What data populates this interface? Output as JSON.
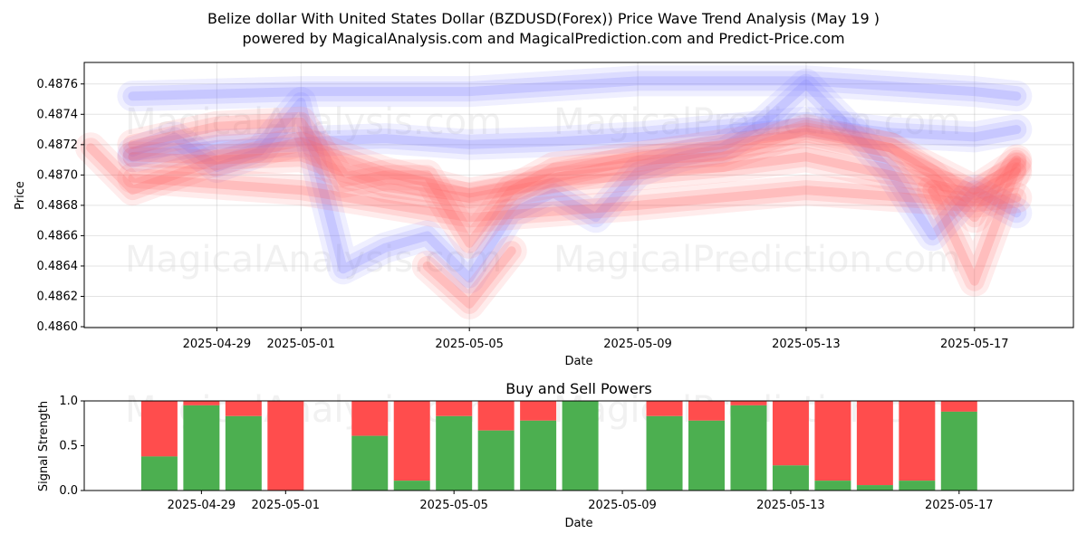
{
  "colors": {
    "buy": "#4caf50",
    "sell": "#ff4d4d",
    "blue_band": "#7f7fff",
    "red_band": "#ff6666",
    "watermark": "#cccccc"
  },
  "chart_data": [
    {
      "type": "line",
      "title": "Belize dollar With United States Dollar (BZDUSD(Forex)) Price Wave Trend Analysis (May 19 )",
      "subtitle": "powered by MagicalAnalysis.com and MagicalPrediction.com and Predict-Price.com",
      "xlabel": "Date",
      "ylabel": "Price",
      "xlim": [
        "2025-04-26",
        "2025-05-19"
      ],
      "ylim": [
        0.486,
        0.4877
      ],
      "x_ticks": [
        "2025-04-29",
        "2025-05-01",
        "2025-05-05",
        "2025-05-09",
        "2025-05-13",
        "2025-05-17"
      ],
      "y_ticks": [
        "0.4860",
        "0.4862",
        "0.4864",
        "0.4866",
        "0.4868",
        "0.4870",
        "0.4872",
        "0.4874",
        "0.4876"
      ],
      "watermarks": [
        "MagicalAnalysis.com",
        "MagicalPrediction.com",
        "MagicalAnalysis.com",
        "MagicalPrediction.com"
      ],
      "series": [
        {
          "name": "blue upper band",
          "color": "#7f7fff",
          "x": [
            "2025-04-27",
            "2025-05-01",
            "2025-05-05",
            "2025-05-09",
            "2025-05-13",
            "2025-05-17",
            "2025-05-18"
          ],
          "values": [
            0.48752,
            0.48755,
            0.48755,
            0.48762,
            0.48762,
            0.48755,
            0.48752
          ]
        },
        {
          "name": "blue wave 1",
          "color": "#7f7fff",
          "x": [
            "2025-04-27",
            "2025-04-28",
            "2025-04-29",
            "2025-04-30",
            "2025-05-01",
            "2025-05-02",
            "2025-05-03",
            "2025-05-04",
            "2025-05-05",
            "2025-05-06",
            "2025-05-07",
            "2025-05-08",
            "2025-05-09",
            "2025-05-10",
            "2025-05-11",
            "2025-05-12",
            "2025-05-13",
            "2025-05-14",
            "2025-05-15",
            "2025-05-16",
            "2025-05-17",
            "2025-05-18"
          ],
          "values": [
            0.48715,
            0.48725,
            0.48705,
            0.48715,
            0.48748,
            0.48638,
            0.48652,
            0.4866,
            0.48632,
            0.48675,
            0.48688,
            0.48672,
            0.48702,
            0.48712,
            0.48718,
            0.48735,
            0.4876,
            0.48732,
            0.48702,
            0.4866,
            0.4869,
            0.48675
          ]
        },
        {
          "name": "blue wave 2",
          "color": "#7f7fff",
          "x": [
            "2025-04-27",
            "2025-04-29",
            "2025-05-01",
            "2025-05-03",
            "2025-05-05",
            "2025-05-07",
            "2025-05-09",
            "2025-05-11",
            "2025-05-13",
            "2025-05-15",
            "2025-05-17",
            "2025-05-18"
          ],
          "values": [
            0.48712,
            0.4872,
            0.48722,
            0.48724,
            0.4872,
            0.48722,
            0.48725,
            0.4873,
            0.48735,
            0.48728,
            0.48725,
            0.4873
          ]
        },
        {
          "name": "red wave 1",
          "color": "#ff6666",
          "x": [
            "2025-04-26",
            "2025-04-27",
            "2025-04-29",
            "2025-05-01",
            "2025-05-03",
            "2025-05-05",
            "2025-05-07",
            "2025-05-09",
            "2025-05-11",
            "2025-05-13",
            "2025-05-15",
            "2025-05-17",
            "2025-05-18"
          ],
          "values": [
            0.48718,
            0.4869,
            0.4871,
            0.48722,
            0.48702,
            0.48688,
            0.48698,
            0.4871,
            0.48712,
            0.4873,
            0.48718,
            0.4869,
            0.48708
          ]
        },
        {
          "name": "red wave 2",
          "color": "#ff6666",
          "x": [
            "2025-04-27",
            "2025-04-29",
            "2025-05-01",
            "2025-05-02",
            "2025-05-03",
            "2025-05-04",
            "2025-05-05",
            "2025-05-06",
            "2025-05-07",
            "2025-05-09",
            "2025-05-11",
            "2025-05-13",
            "2025-05-15",
            "2025-05-16",
            "2025-05-17",
            "2025-05-18"
          ],
          "values": [
            0.4872,
            0.48732,
            0.48735,
            0.48695,
            0.487,
            0.487,
            0.48655,
            0.4869,
            0.48705,
            0.48712,
            0.4872,
            0.48728,
            0.48718,
            0.487,
            0.48672,
            0.4871
          ]
        },
        {
          "name": "red wave 3",
          "color": "#ff6666",
          "x": [
            "2025-04-27",
            "2025-04-29",
            "2025-05-01",
            "2025-05-03",
            "2025-05-05",
            "2025-05-07",
            "2025-05-09",
            "2025-05-11",
            "2025-05-13",
            "2025-05-15",
            "2025-05-17",
            "2025-05-18"
          ],
          "values": [
            0.48712,
            0.4871,
            0.48712,
            0.48692,
            0.48685,
            0.48695,
            0.487,
            0.48705,
            0.48712,
            0.487,
            0.48688,
            0.48702
          ]
        },
        {
          "name": "red lower band",
          "color": "#ff6666",
          "x": [
            "2025-04-27",
            "2025-05-01",
            "2025-05-05",
            "2025-05-09",
            "2025-05-13",
            "2025-05-17",
            "2025-05-18"
          ],
          "values": [
            0.48698,
            0.4869,
            0.48672,
            0.4868,
            0.4869,
            0.48682,
            0.48685
          ]
        },
        {
          "name": "red dip",
          "color": "#ff6666",
          "x": [
            "2025-05-04",
            "2025-05-05",
            "2025-05-06"
          ],
          "values": [
            0.4864,
            0.48615,
            0.4865
          ]
        },
        {
          "name": "red tail",
          "color": "#ff6666",
          "x": [
            "2025-05-16",
            "2025-05-17",
            "2025-05-18"
          ],
          "values": [
            0.4869,
            0.4863,
            0.48705
          ]
        }
      ]
    },
    {
      "type": "bar",
      "title": "Buy and Sell Powers",
      "xlabel": "Date",
      "ylabel": "Signal Strength",
      "ylim": [
        0.0,
        1.0
      ],
      "x_ticks": [
        "2025-04-29",
        "2025-05-01",
        "2025-05-05",
        "2025-05-09",
        "2025-05-13",
        "2025-05-17"
      ],
      "y_ticks": [
        "0.0",
        "0.5",
        "1.0"
      ],
      "categories": [
        "2025-04-28",
        "2025-04-29",
        "2025-04-30",
        "2025-05-01",
        "2025-05-03",
        "2025-05-04",
        "2025-05-05",
        "2025-05-06",
        "2025-05-07",
        "2025-05-08",
        "2025-05-10",
        "2025-05-11",
        "2025-05-12",
        "2025-05-13",
        "2025-05-14",
        "2025-05-15",
        "2025-05-16",
        "2025-05-17"
      ],
      "series": [
        {
          "name": "Buy",
          "color": "#4caf50",
          "values": [
            0.38,
            0.95,
            0.83,
            0.0,
            0.61,
            0.11,
            0.83,
            0.67,
            0.78,
            1.0,
            0.83,
            0.78,
            0.95,
            0.28,
            0.11,
            0.06,
            0.11,
            0.88
          ]
        },
        {
          "name": "Sell",
          "color": "#ff4d4d",
          "values": [
            0.62,
            0.05,
            0.17,
            1.0,
            0.39,
            0.89,
            0.17,
            0.33,
            0.22,
            0.0,
            0.17,
            0.22,
            0.05,
            0.72,
            0.89,
            0.94,
            0.89,
            0.12
          ]
        }
      ]
    }
  ]
}
